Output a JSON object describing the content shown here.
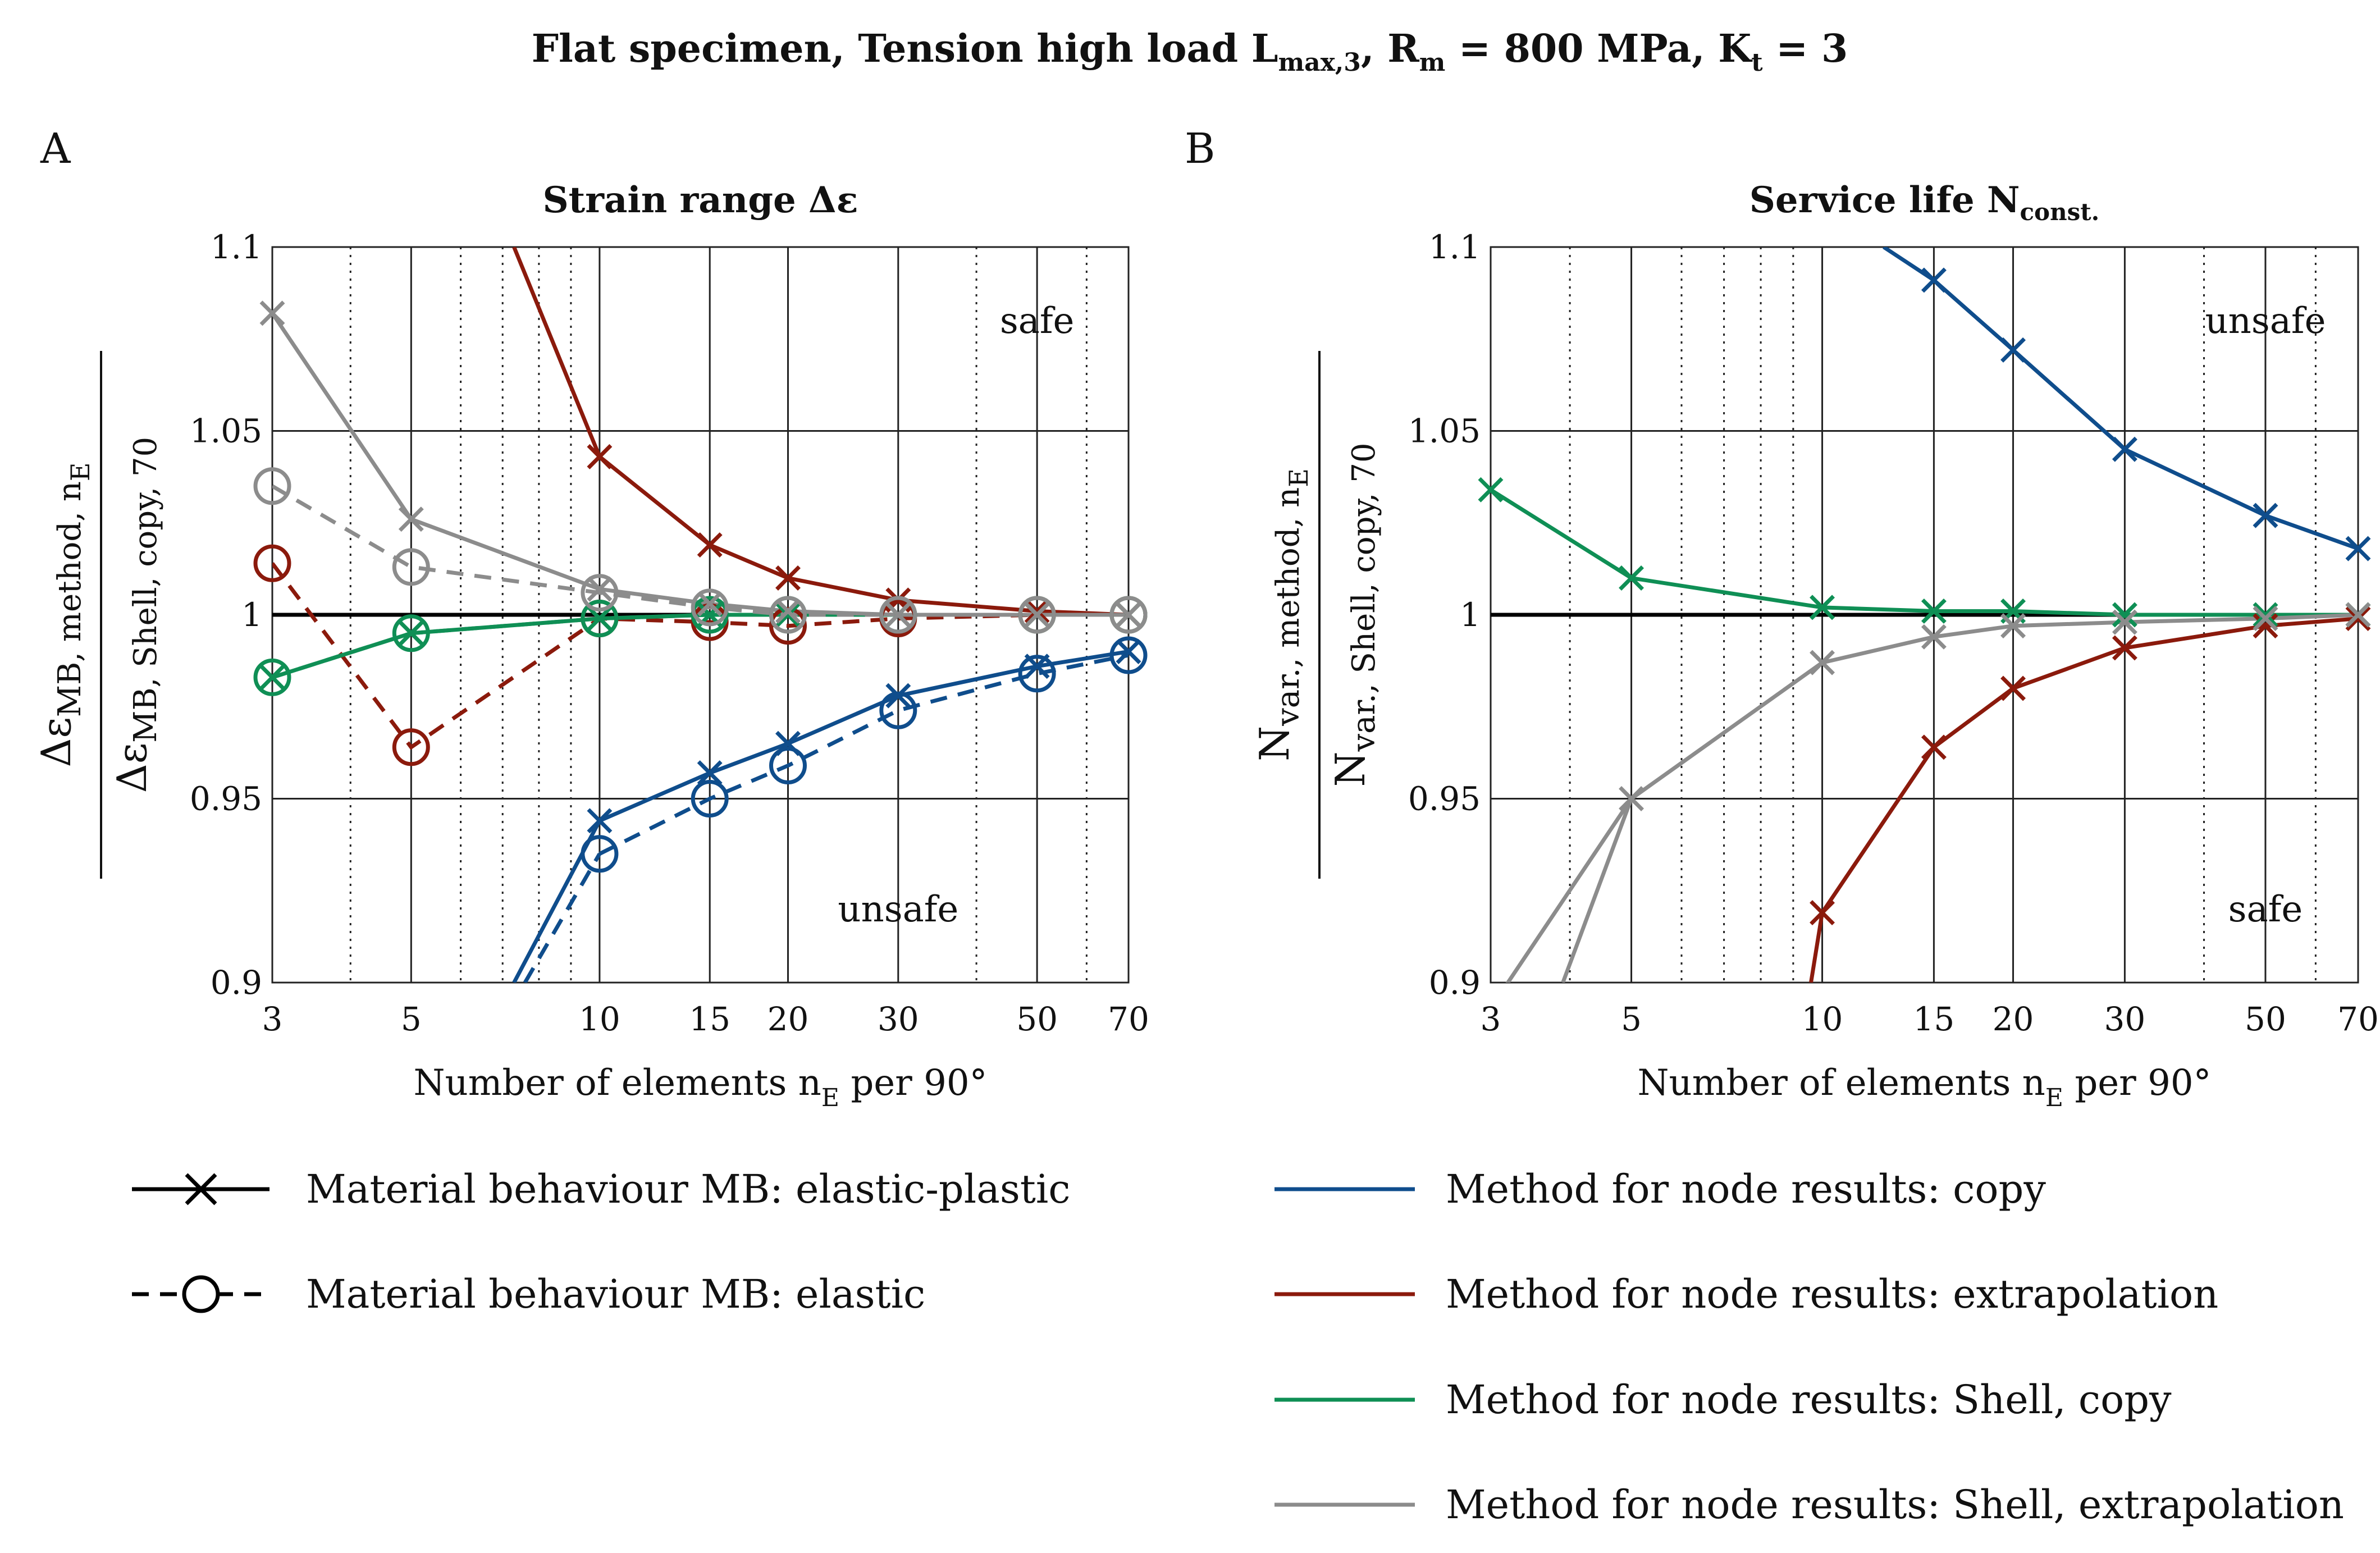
{
  "figure": {
    "title": "Flat specimen, Tension high load L",
    "title_sub": "max,3",
    "title_rest": ", R",
    "title_sub2": "m",
    "title_rest2": " = 800 MPa, K",
    "title_sub3": "t",
    "title_rest3": " = 3"
  },
  "colors": {
    "copy": "#0f4d8c",
    "extrapolation": "#8b1a0c",
    "shell_copy": "#0f8f55",
    "shell_extrapolation": "#8c8c8c",
    "reference": "#000000"
  },
  "chart_data": [
    {
      "type": "line",
      "panel_label": "A",
      "title": "Strain range Δε",
      "xlabel": "Number of elements n",
      "xlabel_sub": "E",
      "xlabel_rest": " per 90°",
      "ylabel_num": "Δε",
      "ylabel_num_sub": "MB, method, n",
      "ylabel_num_sub2": "E",
      "ylabel_den": "Δε",
      "ylabel_den_sub": "MB, Shell, copy, 70",
      "xscale": "log",
      "xlim": [
        3,
        70
      ],
      "ylim": [
        0.9,
        1.1
      ],
      "xticks": [
        3,
        5,
        10,
        15,
        20,
        30,
        50,
        70
      ],
      "xtick_labels": [
        "3",
        "5",
        "10",
        "15",
        "20",
        "30",
        "50",
        "70"
      ],
      "yticks": [
        0.9,
        0.95,
        1,
        1.05,
        1.1
      ],
      "ytick_labels": [
        "0.9",
        "0.95",
        "1",
        "1.05",
        "1.1"
      ],
      "reference_y": 1,
      "annotations": [
        "safe",
        "unsafe"
      ],
      "x": [
        3,
        5,
        10,
        15,
        20,
        30,
        50,
        70
      ],
      "series": [
        {
          "method": "copy",
          "mb": "elastic-plastic",
          "values": [
            null,
            null,
            0.944,
            0.957,
            0.965,
            0.978,
            0.986,
            0.99
          ]
        },
        {
          "method": "copy",
          "mb": "elastic",
          "values": [
            null,
            null,
            0.935,
            0.95,
            0.959,
            0.974,
            0.984,
            0.989
          ]
        },
        {
          "method": "extrapolation",
          "mb": "elastic-plastic",
          "values": [
            null,
            null,
            1.043,
            1.019,
            1.01,
            1.004,
            1.001,
            1.0
          ]
        },
        {
          "method": "extrapolation",
          "mb": "elastic",
          "values": [
            1.014,
            0.964,
            0.999,
            0.998,
            0.997,
            0.999,
            1.0,
            1.0
          ]
        },
        {
          "method": "shell_copy",
          "mb": "elastic-plastic",
          "values": [
            0.983,
            0.995,
            0.999,
            1.0,
            1.0,
            1.0,
            1.0,
            1.0
          ]
        },
        {
          "method": "shell_copy",
          "mb": "elastic",
          "values": [
            0.983,
            0.995,
            0.999,
            1.0,
            1.0,
            1.0,
            1.0,
            1.0
          ]
        },
        {
          "method": "shell_extrapolation",
          "mb": "elastic-plastic",
          "values": [
            1.082,
            1.026,
            1.007,
            1.003,
            1.001,
            1.0,
            1.0,
            1.0
          ]
        },
        {
          "method": "shell_extrapolation",
          "mb": "elastic",
          "values": [
            1.035,
            1.013,
            1.006,
            1.002,
            1.0,
            1.0,
            1.0,
            1.0
          ]
        }
      ],
      "offscale_segments": [
        {
          "method": "copy",
          "mb": "elastic-plastic",
          "from": [
            7.3,
            0.9
          ],
          "to": [
            10,
            0.944
          ]
        },
        {
          "method": "copy",
          "mb": "elastic",
          "from": [
            7.6,
            0.9
          ],
          "to": [
            10,
            0.935
          ]
        },
        {
          "method": "extrapolation",
          "mb": "elastic-plastic",
          "from": [
            7.3,
            1.1
          ],
          "to": [
            10,
            1.043
          ]
        }
      ]
    },
    {
      "type": "line",
      "panel_label": "B",
      "title": "Service life N",
      "title_sub": "const.",
      "xlabel": "Number of elements n",
      "xlabel_sub": "E",
      "xlabel_rest": " per 90°",
      "ylabel_num": "N",
      "ylabel_num_sub": "var., method, n",
      "ylabel_num_sub2": "E",
      "ylabel_den": "N",
      "ylabel_den_sub": "var., Shell, copy, 70",
      "xscale": "log",
      "xlim": [
        3,
        70
      ],
      "ylim": [
        0.9,
        1.1
      ],
      "xticks": [
        3,
        5,
        10,
        15,
        20,
        30,
        50,
        70
      ],
      "xtick_labels": [
        "3",
        "5",
        "10",
        "15",
        "20",
        "30",
        "50",
        "70"
      ],
      "yticks": [
        0.9,
        0.95,
        1,
        1.05,
        1.1
      ],
      "ytick_labels": [
        "0.9",
        "0.95",
        "1",
        "1.05",
        "1.1"
      ],
      "reference_y": 1,
      "annotations": [
        "unsafe",
        "safe"
      ],
      "x": [
        3,
        5,
        10,
        15,
        20,
        30,
        50,
        70
      ],
      "series": [
        {
          "method": "copy",
          "mb": "elastic-plastic",
          "values": [
            null,
            null,
            null,
            1.091,
            1.072,
            1.045,
            1.027,
            1.018
          ]
        },
        {
          "method": "extrapolation",
          "mb": "elastic-plastic",
          "values": [
            null,
            null,
            0.919,
            0.964,
            0.98,
            0.991,
            0.997,
            0.999
          ]
        },
        {
          "method": "shell_copy",
          "mb": "elastic-plastic",
          "values": [
            1.034,
            1.01,
            1.002,
            1.001,
            1.001,
            1.0,
            1.0,
            1.0
          ]
        },
        {
          "method": "shell_extrapolation",
          "mb": "elastic-plastic",
          "values": [
            0.893,
            0.95,
            0.987,
            0.994,
            0.997,
            0.998,
            0.999,
            1.0
          ]
        }
      ],
      "offscale_segments": [
        {
          "method": "copy",
          "mb": "elastic-plastic",
          "from": [
            12.5,
            1.1
          ],
          "to": [
            15,
            1.091
          ]
        },
        {
          "method": "extrapolation",
          "mb": "elastic-plastic",
          "from": [
            9.6,
            0.9
          ],
          "to": [
            10,
            0.919
          ]
        },
        {
          "method": "shell_extrapolation",
          "mb": "elastic-plastic",
          "from": [
            3.9,
            0.9
          ],
          "to": [
            5,
            0.95
          ]
        }
      ]
    }
  ],
  "legend": {
    "mb": [
      {
        "key": "elastic-plastic",
        "label": "Material behaviour MB: elastic-plastic"
      },
      {
        "key": "elastic",
        "label": "Material behaviour MB: elastic"
      }
    ],
    "methods": [
      {
        "key": "copy",
        "label": "Method for node results: copy"
      },
      {
        "key": "extrapolation",
        "label": "Method for node results: extrapolation"
      },
      {
        "key": "shell_copy",
        "label": "Method for node results: Shell, copy"
      },
      {
        "key": "shell_extrapolation",
        "label": "Method for node results: Shell, extrapolation"
      }
    ]
  }
}
